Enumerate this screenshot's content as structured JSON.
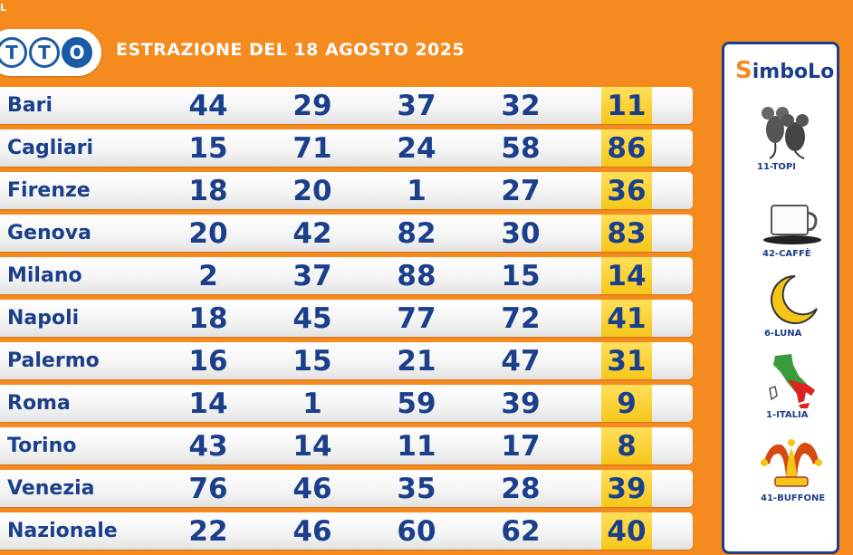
{
  "header": {
    "logo_small": "L",
    "logo_letters": [
      "T",
      "T",
      "O"
    ],
    "title": "ESTRAZIONE DEL 18 AGOSTO 2025"
  },
  "draws": [
    {
      "city": "Bari",
      "numbers": [
        "44",
        "29",
        "37",
        "32",
        "11"
      ]
    },
    {
      "city": "Cagliari",
      "numbers": [
        "15",
        "71",
        "24",
        "58",
        "86"
      ]
    },
    {
      "city": "Firenze",
      "numbers": [
        "18",
        "20",
        "1",
        "27",
        "36"
      ]
    },
    {
      "city": "Genova",
      "numbers": [
        "20",
        "42",
        "82",
        "30",
        "83"
      ]
    },
    {
      "city": "Milano",
      "numbers": [
        "2",
        "37",
        "88",
        "15",
        "14"
      ]
    },
    {
      "city": "Napoli",
      "numbers": [
        "18",
        "45",
        "77",
        "72",
        "41"
      ]
    },
    {
      "city": "Palermo",
      "numbers": [
        "16",
        "15",
        "21",
        "47",
        "31"
      ]
    },
    {
      "city": "Roma",
      "numbers": [
        "14",
        "1",
        "59",
        "39",
        "9"
      ]
    },
    {
      "city": "Torino",
      "numbers": [
        "43",
        "14",
        "11",
        "17",
        "8"
      ]
    },
    {
      "city": "Venezia",
      "numbers": [
        "76",
        "46",
        "35",
        "28",
        "39"
      ]
    },
    {
      "city": "Nazionale",
      "numbers": [
        "22",
        "46",
        "60",
        "62",
        "40"
      ]
    }
  ],
  "simbolotto": {
    "title_first": "S",
    "title_rest": "imboLo",
    "symbols": [
      {
        "label": "11-TOPI",
        "icon": "mice-icon"
      },
      {
        "label": "42-CAFFÈ",
        "icon": "coffee-cup-icon"
      },
      {
        "label": "6-LUNA",
        "icon": "moon-icon"
      },
      {
        "label": "1-ITALIA",
        "icon": "italy-map-icon"
      },
      {
        "label": "41-BUFFONE",
        "icon": "jester-hat-icon"
      }
    ]
  },
  "colors": {
    "background": "#f58a1f",
    "text": "#1b3f8a",
    "highlight": "#f6c61b"
  }
}
